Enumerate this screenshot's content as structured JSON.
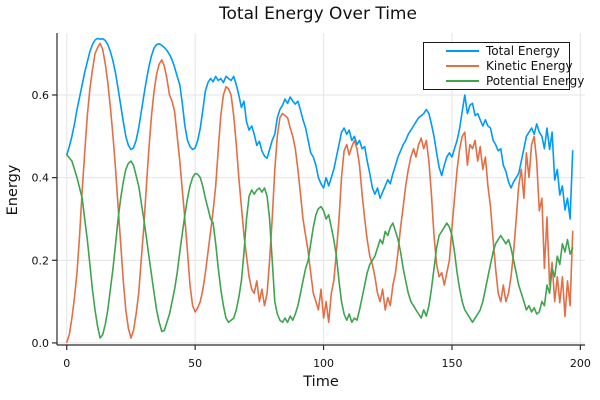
{
  "chart_data": {
    "type": "line",
    "title": "Total Energy Over Time",
    "xlabel": "Time",
    "ylabel": "Energy",
    "xlim": [
      -3.8,
      201.8
    ],
    "ylim": [
      -0.005,
      0.75
    ],
    "xticks": [
      0,
      50,
      100,
      150,
      200
    ],
    "xtick_labels": [
      "0",
      "50",
      "100",
      "150",
      "200"
    ],
    "yticks": [
      0.0,
      0.2,
      0.4,
      0.6
    ],
    "ytick_labels": [
      "0.0",
      "0.2",
      "0.4",
      "0.6"
    ],
    "grid": true,
    "legend_position": "top-right",
    "x": {
      "start": 0,
      "step": 1,
      "count": 198
    },
    "series": [
      {
        "name": "Total Energy",
        "color": "#009AF9",
        "values": [
          0.455,
          0.475,
          0.5,
          0.53,
          0.565,
          0.595,
          0.625,
          0.655,
          0.68,
          0.705,
          0.722,
          0.733,
          0.737,
          0.735,
          0.736,
          0.732,
          0.722,
          0.705,
          0.682,
          0.652,
          0.615,
          0.575,
          0.535,
          0.5,
          0.478,
          0.468,
          0.472,
          0.49,
          0.52,
          0.558,
          0.598,
          0.636,
          0.668,
          0.695,
          0.714,
          0.722,
          0.724,
          0.72,
          0.715,
          0.708,
          0.698,
          0.685,
          0.667,
          0.645,
          0.625,
          0.58,
          0.525,
          0.49,
          0.475,
          0.468,
          0.472,
          0.49,
          0.52,
          0.565,
          0.61,
          0.63,
          0.64,
          0.632,
          0.645,
          0.635,
          0.64,
          0.63,
          0.645,
          0.64,
          0.635,
          0.645,
          0.625,
          0.6,
          0.57,
          0.585,
          0.535,
          0.515,
          0.525,
          0.505,
          0.478,
          0.488,
          0.465,
          0.452,
          0.447,
          0.468,
          0.49,
          0.505,
          0.545,
          0.565,
          0.575,
          0.59,
          0.58,
          0.595,
          0.585,
          0.578,
          0.585,
          0.563,
          0.54,
          0.52,
          0.49,
          0.46,
          0.45,
          0.43,
          0.4,
          0.385,
          0.375,
          0.4,
          0.38,
          0.4,
          0.42,
          0.45,
          0.48,
          0.51,
          0.52,
          0.505,
          0.515,
          0.49,
          0.5,
          0.48,
          0.49,
          0.47,
          0.475,
          0.44,
          0.41,
          0.375,
          0.36,
          0.375,
          0.35,
          0.365,
          0.38,
          0.395,
          0.385,
          0.41,
          0.43,
          0.45,
          0.465,
          0.48,
          0.49,
          0.505,
          0.515,
          0.525,
          0.535,
          0.545,
          0.55,
          0.555,
          0.565,
          0.555,
          0.53,
          0.5,
          0.46,
          0.425,
          0.405,
          0.43,
          0.45,
          0.46,
          0.45,
          0.47,
          0.49,
          0.52,
          0.56,
          0.6,
          0.555,
          0.575,
          0.58,
          0.55,
          0.555,
          0.54,
          0.525,
          0.54,
          0.525,
          0.52,
          0.49,
          0.48,
          0.465,
          0.47,
          0.43,
          0.415,
          0.39,
          0.375,
          0.39,
          0.4,
          0.41,
          0.44,
          0.47,
          0.5,
          0.51,
          0.52,
          0.505,
          0.53,
          0.51,
          0.5,
          0.47,
          0.52,
          0.468,
          0.51,
          0.394,
          0.42,
          0.358,
          0.38,
          0.322,
          0.35,
          0.3,
          0.465
        ]
      },
      {
        "name": "Kinetic Energy",
        "color": "#E26F46",
        "values": [
          0.002,
          0.02,
          0.06,
          0.11,
          0.17,
          0.26,
          0.37,
          0.46,
          0.55,
          0.615,
          0.66,
          0.7,
          0.715,
          0.725,
          0.71,
          0.675,
          0.63,
          0.57,
          0.5,
          0.42,
          0.33,
          0.24,
          0.15,
          0.08,
          0.035,
          0.012,
          0.03,
          0.07,
          0.12,
          0.2,
          0.28,
          0.38,
          0.47,
          0.55,
          0.61,
          0.65,
          0.675,
          0.685,
          0.67,
          0.64,
          0.6,
          0.585,
          0.56,
          0.5,
          0.44,
          0.37,
          0.3,
          0.22,
          0.14,
          0.09,
          0.075,
          0.085,
          0.1,
          0.13,
          0.17,
          0.22,
          0.27,
          0.32,
          0.38,
          0.47,
          0.55,
          0.6,
          0.62,
          0.615,
          0.6,
          0.55,
          0.48,
          0.4,
          0.33,
          0.26,
          0.21,
          0.16,
          0.13,
          0.12,
          0.15,
          0.1,
          0.13,
          0.09,
          0.12,
          0.2,
          0.3,
          0.42,
          0.5,
          0.545,
          0.555,
          0.55,
          0.545,
          0.52,
          0.5,
          0.47,
          0.42,
          0.36,
          0.3,
          0.26,
          0.22,
          0.17,
          0.12,
          0.1,
          0.08,
          0.13,
          0.06,
          0.1,
          0.05,
          0.12,
          0.15,
          0.22,
          0.3,
          0.4,
          0.465,
          0.48,
          0.455,
          0.475,
          0.49,
          0.47,
          0.43,
          0.36,
          0.3,
          0.25,
          0.21,
          0.19,
          0.16,
          0.12,
          0.1,
          0.13,
          0.08,
          0.11,
          0.09,
          0.14,
          0.17,
          0.22,
          0.28,
          0.33,
          0.38,
          0.42,
          0.45,
          0.47,
          0.45,
          0.48,
          0.496,
          0.47,
          0.49,
          0.44,
          0.36,
          0.26,
          0.19,
          0.16,
          0.17,
          0.14,
          0.17,
          0.2,
          0.28,
          0.35,
          0.42,
          0.47,
          0.5,
          0.51,
          0.43,
          0.48,
          0.47,
          0.49,
          0.44,
          0.475,
          0.42,
          0.45,
          0.38,
          0.33,
          0.25,
          0.18,
          0.12,
          0.1,
          0.14,
          0.1,
          0.12,
          0.16,
          0.22,
          0.3,
          0.38,
          0.42,
          0.35,
          0.46,
          0.4,
          0.48,
          0.5,
          0.44,
          0.32,
          0.35,
          0.18,
          0.305,
          0.14,
          0.195,
          0.1,
          0.16,
          0.097,
          0.16,
          0.064,
          0.15,
          0.09,
          0.27
        ]
      },
      {
        "name": "Potential Energy",
        "color": "#3EA44E",
        "values": [
          0.455,
          0.448,
          0.44,
          0.42,
          0.4,
          0.375,
          0.35,
          0.3,
          0.25,
          0.19,
          0.13,
          0.08,
          0.04,
          0.012,
          0.02,
          0.045,
          0.08,
          0.13,
          0.18,
          0.24,
          0.3,
          0.35,
          0.39,
          0.42,
          0.435,
          0.44,
          0.43,
          0.405,
          0.38,
          0.34,
          0.3,
          0.255,
          0.21,
          0.165,
          0.12,
          0.08,
          0.05,
          0.028,
          0.03,
          0.05,
          0.07,
          0.1,
          0.13,
          0.17,
          0.22,
          0.265,
          0.31,
          0.35,
          0.38,
          0.4,
          0.41,
          0.408,
          0.4,
          0.378,
          0.35,
          0.325,
          0.3,
          0.29,
          0.24,
          0.18,
          0.13,
          0.09,
          0.06,
          0.05,
          0.055,
          0.06,
          0.08,
          0.11,
          0.15,
          0.22,
          0.3,
          0.355,
          0.37,
          0.36,
          0.37,
          0.375,
          0.365,
          0.375,
          0.355,
          0.3,
          0.2,
          0.1,
          0.07,
          0.055,
          0.05,
          0.06,
          0.05,
          0.065,
          0.055,
          0.07,
          0.09,
          0.12,
          0.15,
          0.18,
          0.2,
          0.24,
          0.28,
          0.31,
          0.325,
          0.33,
          0.32,
          0.3,
          0.31,
          0.28,
          0.25,
          0.21,
          0.15,
          0.1,
          0.07,
          0.055,
          0.07,
          0.05,
          0.06,
          0.055,
          0.08,
          0.11,
          0.14,
          0.17,
          0.19,
          0.2,
          0.21,
          0.23,
          0.25,
          0.24,
          0.27,
          0.26,
          0.28,
          0.29,
          0.27,
          0.25,
          0.22,
          0.18,
          0.15,
          0.12,
          0.1,
          0.09,
          0.08,
          0.07,
          0.06,
          0.08,
          0.065,
          0.09,
          0.13,
          0.18,
          0.23,
          0.26,
          0.27,
          0.28,
          0.29,
          0.28,
          0.26,
          0.22,
          0.17,
          0.13,
          0.1,
          0.08,
          0.07,
          0.06,
          0.05,
          0.06,
          0.07,
          0.08,
          0.1,
          0.13,
          0.16,
          0.19,
          0.22,
          0.24,
          0.25,
          0.26,
          0.25,
          0.24,
          0.25,
          0.23,
          0.2,
          0.17,
          0.14,
          0.12,
          0.1,
          0.08,
          0.09,
          0.075,
          0.085,
          0.07,
          0.075,
          0.1,
          0.09,
          0.14,
          0.12,
          0.18,
          0.16,
          0.21,
          0.19,
          0.24,
          0.22,
          0.25,
          0.215,
          0.23
        ]
      }
    ],
    "colors": {
      "background": "#FFFFFF",
      "grid": "#E4E4E4",
      "axis": "#2B2B2B",
      "text": "#111111"
    }
  }
}
